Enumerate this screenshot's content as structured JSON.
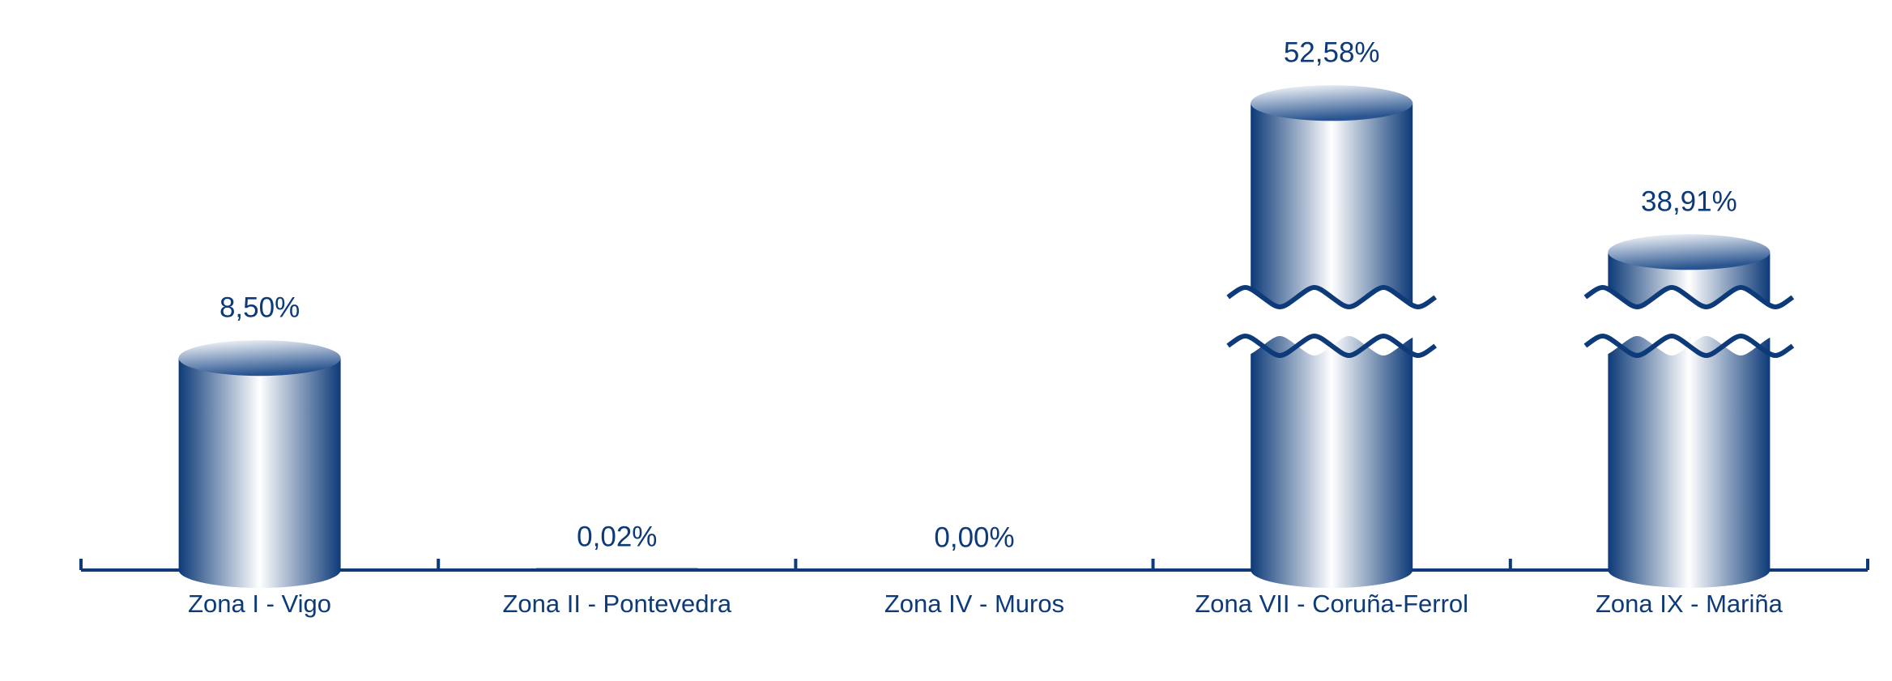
{
  "chart_data": {
    "type": "bar",
    "categories": [
      "Zona I - Vigo",
      "Zona II - Pontevedra",
      "Zona IV - Muros",
      "Zona VII - Coruña-Ferrol",
      "Zona IX - Mariña"
    ],
    "values": [
      8.5,
      0.02,
      0,
      52.58,
      38.91
    ],
    "value_labels": [
      "8,50%",
      "0,02%",
      "0,00%",
      "52,58%",
      "38,91%"
    ],
    "color": "#0d3a78"
  }
}
